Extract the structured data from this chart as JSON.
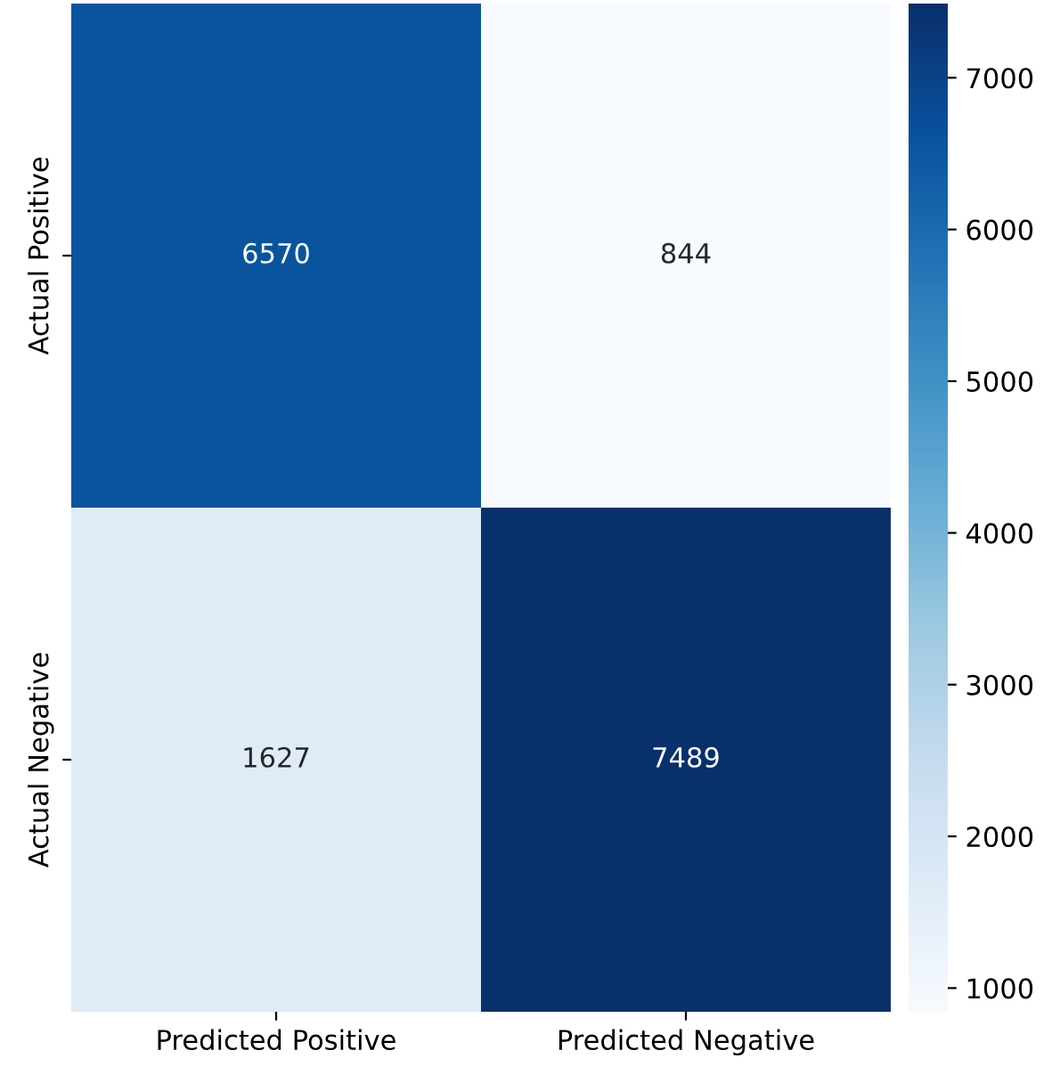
{
  "chart_data": {
    "type": "heatmap",
    "categories": [
      "Predicted Positive",
      "Predicted Negative"
    ],
    "y_categories": [
      "Actual Positive",
      "Actual Negative"
    ],
    "cells": [
      [
        6570,
        844
      ],
      [
        1627,
        7489
      ]
    ],
    "data_labels": true,
    "clim": [
      844,
      7489
    ],
    "cticks": [
      1000,
      2000,
      3000,
      4000,
      5000,
      6000,
      7000
    ]
  }
}
